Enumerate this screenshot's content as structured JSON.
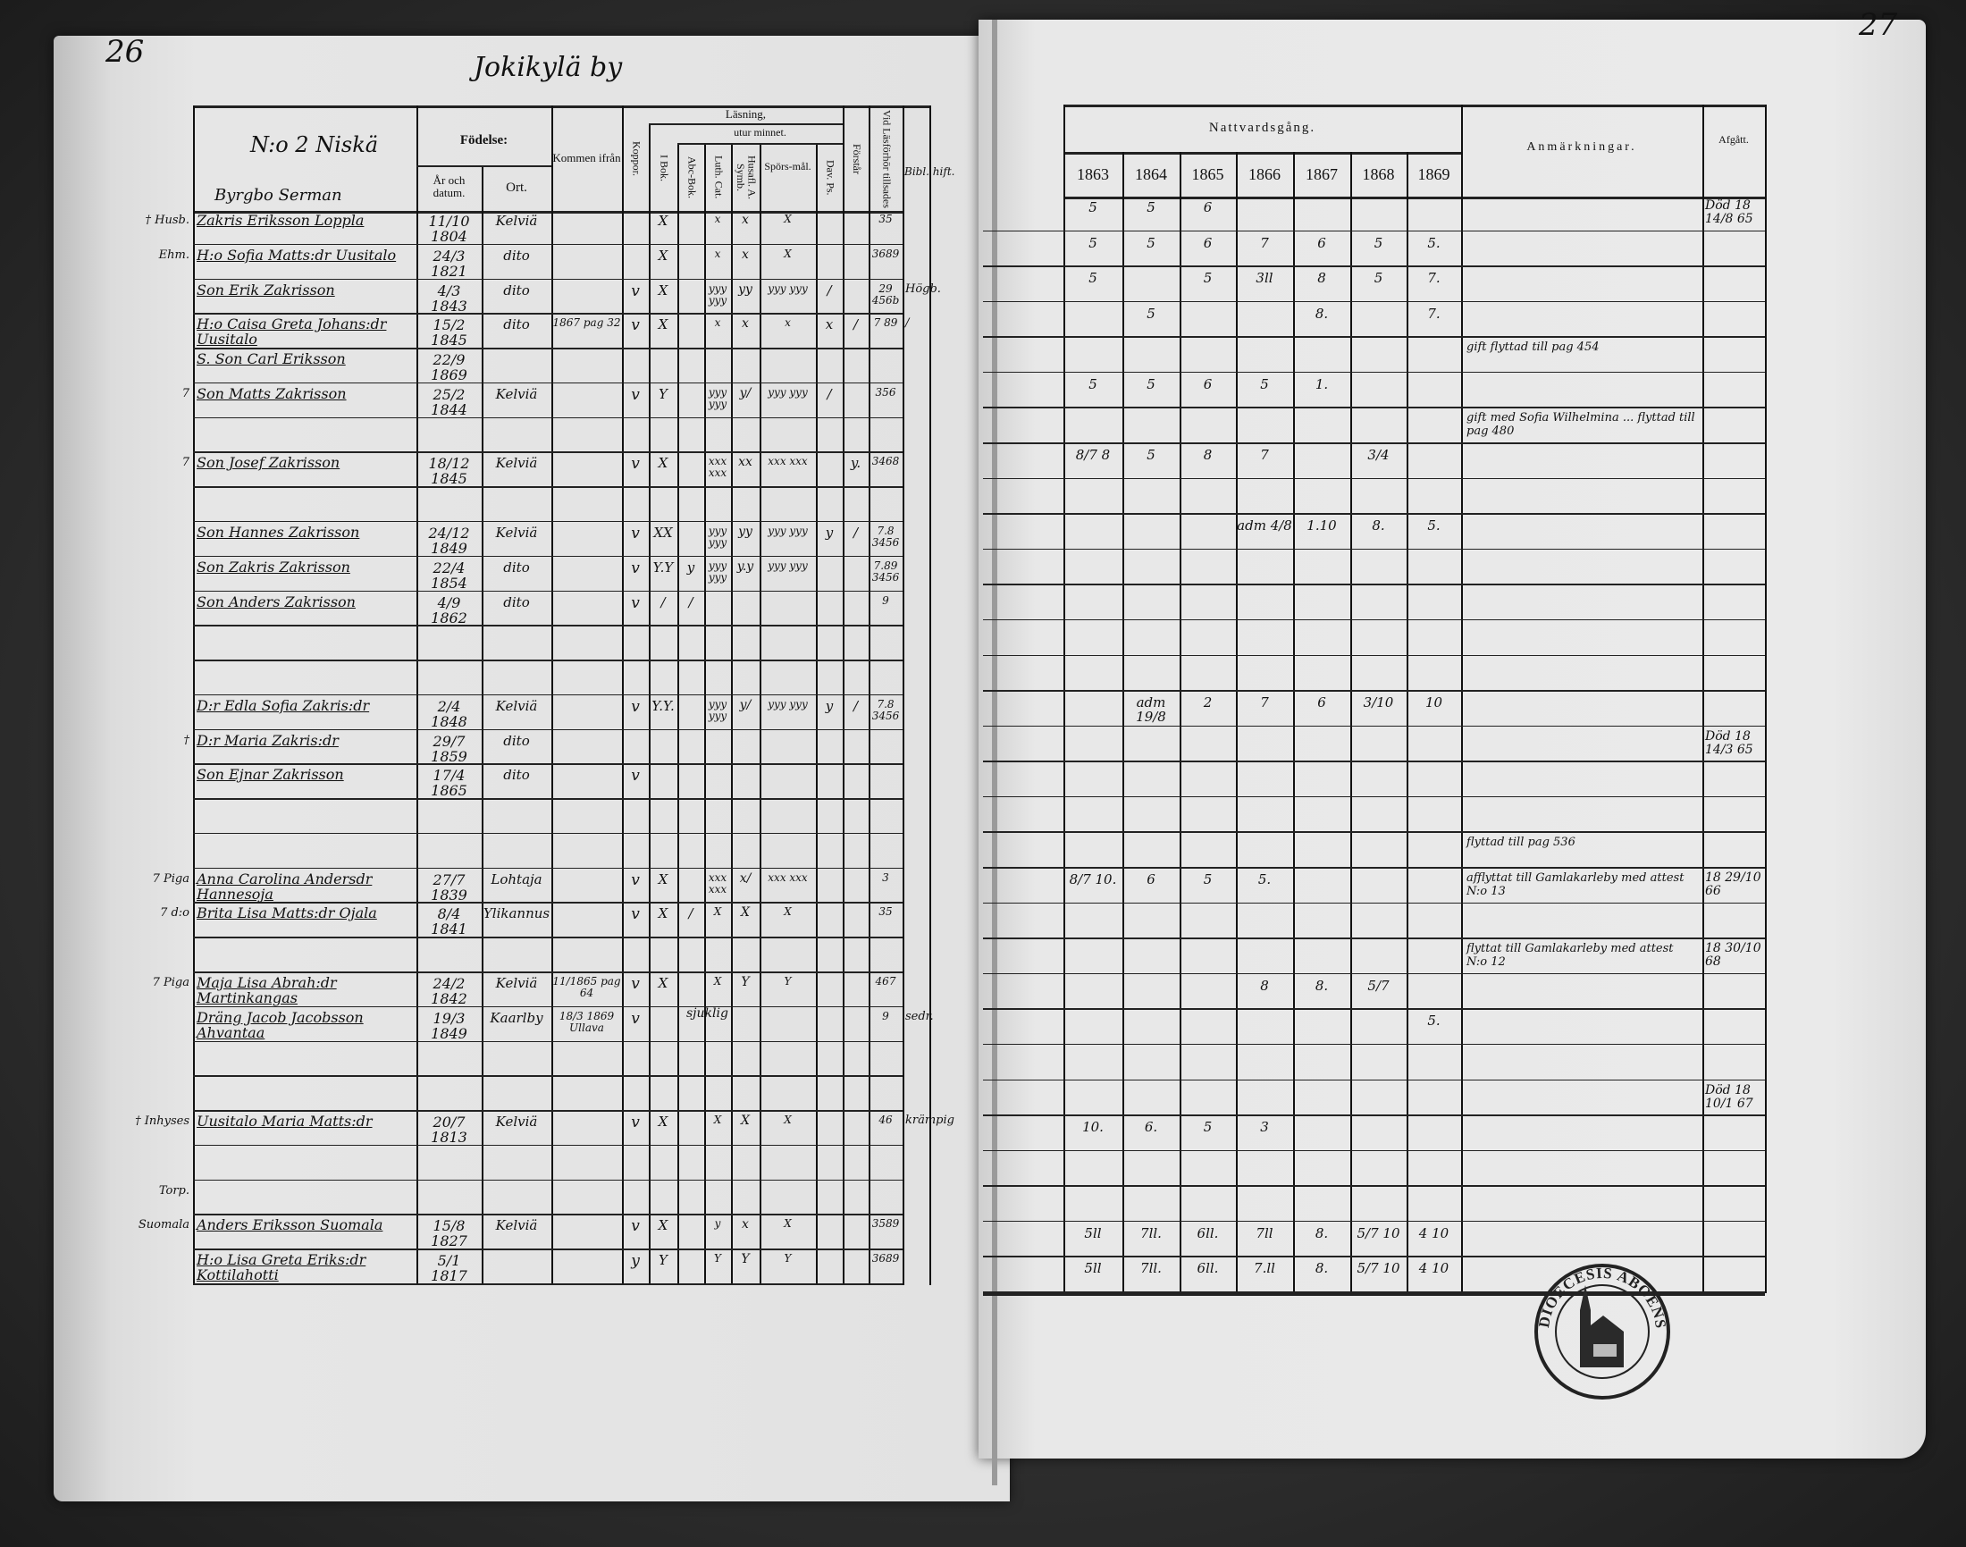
{
  "left": {
    "page_number": "26",
    "title": "Jokikylä by",
    "household_label": "N:o 2 Niskä",
    "group_label": "Byrgbo Serman",
    "headers": {
      "name": "",
      "birth": "Födelse:",
      "birth_year": "År och datum.",
      "birth_place": "Ort.",
      "from": "Kommen ifrån",
      "koppor": "Koppor.",
      "reading": "Läsning,",
      "by_heart": "utur minnet.",
      "i_bok": "I Bok.",
      "abc": "Abc-Bok.",
      "luth": "Luth. Cat.",
      "husafl": "Husafl. A. Symb.",
      "spors": "Spörs-mål.",
      "dav": "Dav. Ps.",
      "forstar": "Förstår",
      "lasforhor": "Vid Läsförhör tillsades",
      "extra": "Bibl. hift."
    },
    "rows": [
      {
        "margin": "† Husb.",
        "name": "Zakris Eriksson Loppla",
        "born": "11/10 1804",
        "place": "Kelviä",
        "ibok": "X",
        "luth": "x",
        "husafl": "x",
        "spors": "X",
        "lasforhor": "35"
      },
      {
        "margin": "Ehm.",
        "name": "H:o Sofia Matts:dr Uusitalo",
        "born": "24/3 1821",
        "place": "dito",
        "ibok": "X",
        "luth": "x",
        "husafl": "x",
        "spors": "X",
        "lasforhor": "3689"
      },
      {
        "name": "Son Erik Zakrisson",
        "born": "4/3 1843",
        "place": "dito",
        "koppor": "v",
        "ibok": "X",
        "luth": "yyy yyy",
        "husafl": "yy",
        "spors": "yyy yyy",
        "dav": "/",
        "lasforhor": "29 456b",
        "extra": "Högb."
      },
      {
        "name": "H:o Caisa Greta Johans:dr Uusitalo",
        "born": "15/2 1845",
        "place": "dito",
        "from": "1867 pag 32",
        "koppor": "v",
        "ibok": "X",
        "luth": "x",
        "husafl": "x",
        "spors": "x",
        "dav": "x",
        "forstar": "/",
        "lasforhor": "7 89",
        "extra": "/"
      },
      {
        "name": "S. Son Carl Eriksson",
        "born": "22/9 1869"
      },
      {
        "margin": "7",
        "name": "Son Matts Zakrisson",
        "born": "25/2 1844",
        "place": "Kelviä",
        "koppor": "v",
        "ibok": "Y",
        "luth": "yyy yyy",
        "husafl": "y/",
        "spors": "yyy yyy",
        "dav": "/",
        "lasforhor": "356"
      },
      {},
      {
        "margin": "7",
        "name": "Son Josef Zakrisson",
        "born": "18/12 1845",
        "place": "Kelviä",
        "koppor": "v",
        "ibok": "X",
        "luth": "xxx xxx",
        "husafl": "xx",
        "spors": "xxx xxx",
        "forstar": "y.",
        "lasforhor": "3468"
      },
      {},
      {
        "name": "Son Hannes Zakrisson",
        "born": "24/12 1849",
        "place": "Kelviä",
        "koppor": "v",
        "ibok": "XX",
        "luth": "yyy yyy",
        "husafl": "yy",
        "spors": "yyy yyy",
        "dav": "y",
        "forstar": "/",
        "lasforhor": "7.8 3456"
      },
      {
        "name": "Son Zakris Zakrisson",
        "born": "22/4 1854",
        "place": "dito",
        "koppor": "v",
        "ibok": "Y.Y",
        "abc": "y",
        "luth": "yyy yyy",
        "husafl": "y.y",
        "spors": "yyy yyy",
        "lasforhor": "7.89 3456"
      },
      {
        "name": "Son Anders Zakrisson",
        "born": "4/9 1862",
        "place": "dito",
        "koppor": "v",
        "ibok": "/",
        "abc": "/",
        "lasforhor": "9"
      },
      {},
      {},
      {
        "name": "D:r Edla Sofia Zakris:dr",
        "born": "2/4 1848",
        "place": "Kelviä",
        "koppor": "v",
        "ibok": "Y.Y.",
        "luth": "yyy yyy",
        "husafl": "y/",
        "spors": "yyy yyy",
        "dav": "y",
        "forstar": "/",
        "lasforhor": "7.8 3456"
      },
      {
        "margin": "†",
        "name": "D:r Maria Zakris:dr",
        "born": "29/7 1859",
        "place": "dito"
      },
      {
        "name": "Son Ejnar Zakrisson",
        "born": "17/4 1865",
        "place": "dito",
        "koppor": "v"
      },
      {},
      {},
      {
        "margin": "7 Piga",
        "name": "Anna Carolina Andersdr Hannesoja",
        "born": "27/7 1839",
        "place": "Lohtaja",
        "koppor": "v",
        "ibok": "X",
        "luth": "xxx xxx",
        "husafl": "x/",
        "spors": "xxx xxx",
        "lasforhor": "3"
      },
      {
        "margin": "7 d:o",
        "name": "Brita Lisa Matts:dr Ojala",
        "born": "8/4 1841",
        "place": "Ylikannus",
        "koppor": "v",
        "ibok": "X",
        "abc": "/",
        "luth": "X",
        "husafl": "X",
        "spors": "X",
        "lasforhor": "35"
      },
      {},
      {
        "margin": "7 Piga",
        "name": "Maja Lisa Abrah:dr Martinkangas",
        "born": "24/2 1842",
        "place": "Kelviä",
        "from": "11/1865 pag 64",
        "koppor": "v",
        "ibok": "X",
        "luth": "X",
        "husafl": "Y",
        "spors": "Y",
        "lasforhor": "467",
        "note": "sjuklig"
      },
      {
        "name": "Dräng Jacob Jacobsson Ahvantaa",
        "born": "19/3 1849",
        "place": "Kaarlby",
        "from": "18/3 1869 Ullava",
        "koppor": "v",
        "lasforhor": "9",
        "extra": "sedr."
      },
      {},
      {},
      {
        "margin": "† Inhyses",
        "name": "Uusitalo Maria Matts:dr",
        "born": "20/7 1813",
        "place": "Kelviä",
        "koppor": "v",
        "ibok": "X",
        "luth": "X",
        "husafl": "X",
        "spors": "X",
        "lasforhor": "46",
        "extra": "krämpig"
      },
      {},
      {
        "margin": "Torp."
      },
      {
        "margin": "Suomala",
        "name": "Anders Eriksson Suomala",
        "born": "15/8 1827",
        "place": "Kelviä",
        "koppor": "v",
        "ibok": "X",
        "luth": "y",
        "husafl": "x",
        "spors": "X",
        "lasforhor": "3589"
      },
      {
        "name": "H:o Lisa Greta Eriks:dr Kottilahotti",
        "born": "5/1 1817",
        "koppor": "y",
        "ibok": "Y",
        "luth": "Y",
        "husafl": "Y",
        "spors": "Y",
        "lasforhor": "3689"
      }
    ]
  },
  "right": {
    "page_number": "27",
    "headers": {
      "communion": "Nattvardsgång.",
      "years": [
        "1863",
        "1864",
        "1865",
        "1866",
        "1867",
        "1868",
        "1869"
      ],
      "remarks": "Anmärkningar.",
      "departed": "Afgått."
    },
    "rows": [
      {
        "years": [
          "5",
          "5",
          "6",
          "",
          "",
          "",
          ""
        ],
        "departed": "Död 18 14/8 65"
      },
      {
        "years": [
          "5",
          "5",
          "6",
          "7",
          "6",
          "5",
          "5."
        ]
      },
      {
        "years": [
          "5",
          "",
          "5",
          "3ll",
          "8",
          "5",
          "7."
        ]
      },
      {
        "years": [
          "",
          "5",
          "",
          "",
          "8.",
          "",
          "7."
        ]
      },
      {
        "remarks": "gift flyttad till pag 454"
      },
      {
        "years": [
          "5",
          "5",
          "6",
          "5",
          "1.",
          "",
          ""
        ]
      },
      {
        "remarks": "gift med Sofia Wilhelmina ... flyttad till pag 480"
      },
      {
        "years": [
          "8/7 8",
          "5",
          "8",
          "7",
          "",
          "3/4",
          ""
        ]
      },
      {},
      {
        "years": [
          "",
          "",
          "",
          "adm 4/8",
          "1.10",
          "8.",
          "5."
        ]
      },
      {},
      {},
      {},
      {},
      {
        "years": [
          "",
          "adm 19/8",
          "2",
          "7",
          "6",
          "3/10",
          "10"
        ]
      },
      {
        "departed": "Död 18 14/3 65"
      },
      {},
      {},
      {
        "remarks": "flyttad till pag 536"
      },
      {
        "years": [
          "8/7 10.",
          "6",
          "5",
          "5.",
          "",
          "",
          ""
        ],
        "remarks": "afflyttat till Gamlakarleby med attest N:o 13",
        "departed": "18 29/10 66"
      },
      {},
      {
        "remarks": "flyttat till Gamlakarleby med attest N:o 12",
        "departed": "18 30/10 68"
      },
      {
        "years": [
          "",
          "",
          "",
          "8",
          "8.",
          "5/7",
          ""
        ]
      },
      {
        "years": [
          "",
          "",
          "",
          "",
          "",
          "",
          "5."
        ]
      },
      {},
      {
        "departed": "Död 18 10/1 67"
      },
      {
        "years": [
          "10.",
          "6.",
          "5",
          "3",
          "",
          "",
          ""
        ]
      },
      {},
      {},
      {
        "years": [
          "5ll",
          "7ll.",
          "6ll.",
          "7ll",
          "8.",
          "5/7 10",
          "4 10"
        ]
      },
      {
        "years": [
          "5ll",
          "7ll.",
          "6ll.",
          "7.ll",
          "8.",
          "5/7 10",
          "4 10"
        ]
      }
    ],
    "stamp_text": "DIOECESIS ABOENSIS"
  }
}
